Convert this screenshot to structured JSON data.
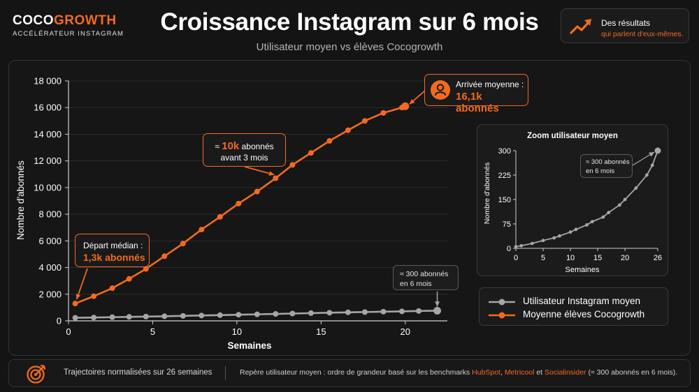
{
  "brand": {
    "name_part1": "COCO",
    "name_part2": "GROWTH",
    "tagline": "ACCÉLÉRATEUR INSTAGRAM"
  },
  "header": {
    "title": "Croissance Instagram sur 6 mois",
    "subtitle": "Utilisateur moyen vs élèves Cocogrowth"
  },
  "badge": {
    "line1": "Des résultats",
    "line2": "qui parlent d'eux-mêmes.",
    "icon": "trend-up-arrow-icon"
  },
  "colors": {
    "accent": "#f26a21",
    "average_user": "#a6a6a6",
    "background": "#141414"
  },
  "chart_data": [
    {
      "type": "line",
      "xlabel": "Semaines",
      "ylabel": "Nombre d'abonnés",
      "xlim": [
        0,
        22.5
      ],
      "ylim": [
        0,
        18000
      ],
      "x_ticks": [
        0,
        5,
        10,
        15,
        20
      ],
      "y_ticks": [
        0,
        2000,
        4000,
        6000,
        8000,
        10000,
        12000,
        14000,
        16000,
        18000
      ],
      "y_tick_labels": [
        "0",
        "2 000",
        "4 000",
        "6 000",
        "8 000",
        "10 000",
        "12 000",
        "14 000",
        "16 000",
        "18 000"
      ],
      "grid": "horizontal",
      "series": [
        {
          "name": "Moyenne élèves Cocogrowth",
          "color": "#f26a21",
          "x": [
            0.4,
            1.5,
            2.6,
            3.6,
            4.6,
            5.7,
            6.8,
            7.9,
            9.0,
            10.1,
            11.2,
            12.3,
            13.3,
            14.4,
            15.5,
            16.6,
            17.6,
            18.7,
            19.8,
            20.0
          ],
          "y": [
            1300,
            1850,
            2450,
            3150,
            3900,
            4850,
            5800,
            6850,
            7800,
            8800,
            9700,
            10700,
            11700,
            12600,
            13500,
            14300,
            15000,
            15600,
            16000,
            16100
          ]
        },
        {
          "name": "Utilisateur Instagram moyen",
          "color": "#a6a6a6",
          "x": [
            0.4,
            1.5,
            2.6,
            3.6,
            4.6,
            5.7,
            6.8,
            7.9,
            9.0,
            10.1,
            11.2,
            12.3,
            13.3,
            14.4,
            15.5,
            16.6,
            17.6,
            18.7,
            19.8,
            20.8,
            21.9
          ],
          "y": [
            230,
            250,
            275,
            300,
            320,
            345,
            375,
            400,
            430,
            460,
            490,
            520,
            550,
            580,
            610,
            640,
            660,
            690,
            710,
            740,
            760
          ]
        }
      ],
      "annotations": [
        {
          "line1": "Départ médian :",
          "line2": "1,3k abonnés"
        },
        {
          "line1_prefix": "≈ ",
          "line1_value": "10k",
          "line1_suffix": " abonnés",
          "line2": "avant 3 mois"
        },
        {
          "line1": "Arrivée moyenne :",
          "line2": "16,1k abonnés"
        },
        {
          "line1": "≈ 300 abonnés",
          "line2": "en 6 mois"
        }
      ]
    },
    {
      "type": "line",
      "title": "Zoom utilisateur moyen",
      "xlabel": "Semaines",
      "ylabel": "Nombre d'abonnés",
      "xlim": [
        0,
        26
      ],
      "ylim": [
        0,
        300
      ],
      "x_ticks": [
        0,
        5,
        10,
        15,
        20,
        26
      ],
      "y_ticks": [
        0,
        75,
        150,
        225,
        300
      ],
      "series": [
        {
          "name": "Utilisateur Instagram moyen",
          "color": "#a6a6a6",
          "x": [
            0,
            1,
            3,
            5,
            7,
            8,
            10,
            11,
            13,
            14,
            16,
            17,
            19,
            20,
            22,
            24,
            25,
            26
          ],
          "y": [
            5,
            8,
            15,
            24,
            32,
            38,
            50,
            58,
            72,
            82,
            96,
            110,
            133,
            150,
            185,
            225,
            255,
            300
          ]
        }
      ],
      "annotations": [
        {
          "line1": "≈ 300 abonnés",
          "line2": "en 6 mois"
        }
      ]
    }
  ],
  "legend": {
    "items": [
      "Utilisateur Instagram moyen",
      "Moyenne élèves Cocogrowth"
    ]
  },
  "footer": {
    "left": "Trajectoires normalisées sur 26 semaines",
    "right_prefix": "Repère utilisateur moyen : ordre de grandeur basé sur les benchmarks ",
    "source1": "HubSpot",
    "sep1": ", ",
    "source2": "Metricool",
    "sep2": " et ",
    "source3": "Socialinsider",
    "right_suffix": " (≈ 300 abonnés en 6 mois).",
    "icon": "target-icon"
  }
}
